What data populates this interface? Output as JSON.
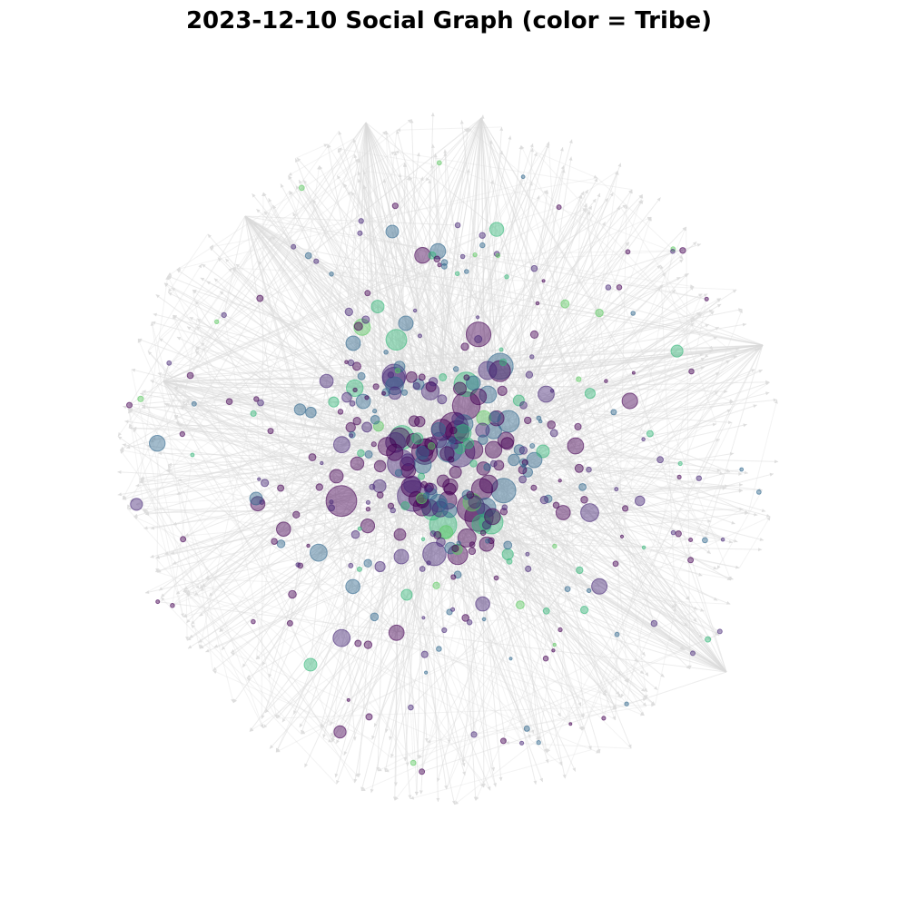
{
  "chart": {
    "title": "2023-12-10 Social Graph (color = Tribe)"
  },
  "chart_data": {
    "type": "network",
    "title": "2023-12-10 Social Graph (color = Tribe)",
    "color_encoding": "Tribe",
    "directed": true,
    "grid": false,
    "axes": "hidden",
    "legend": "none",
    "colors": {
      "edge": "#dcdcdc",
      "tribe_dark_purple": "#440154",
      "tribe_purple": "#482878",
      "tribe_steel_blue": "#31688e",
      "tribe_teal": "#35b779",
      "tribe_green": "#5ec962"
    }
  }
}
